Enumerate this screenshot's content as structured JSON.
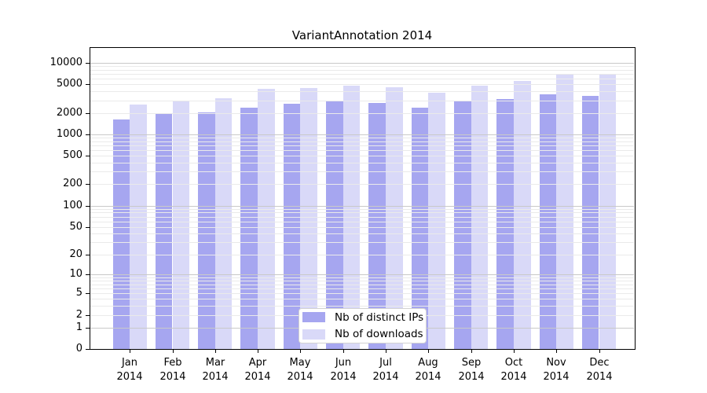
{
  "title": "VariantAnnotation 2014",
  "chart_data": {
    "type": "bar",
    "title": "VariantAnnotation 2014",
    "months": [
      "Jan",
      "Feb",
      "Mar",
      "Apr",
      "May",
      "Jun",
      "Jul",
      "Aug",
      "Sep",
      "Oct",
      "Nov",
      "Dec"
    ],
    "year": "2014",
    "categories": [
      "Jan 2014",
      "Feb 2014",
      "Mar 2014",
      "Apr 2014",
      "May 2014",
      "Jun 2014",
      "Jul 2014",
      "Aug 2014",
      "Sep 2014",
      "Oct 2014",
      "Nov 2014",
      "Dec 2014"
    ],
    "series": [
      {
        "name": "Nb of distinct IPs",
        "color": "#a6a6f0",
        "values": [
          1620,
          1910,
          2050,
          2390,
          2680,
          2870,
          2780,
          2370,
          2920,
          3120,
          3600,
          3460
        ]
      },
      {
        "name": "Nb of downloads",
        "color": "#d9d9f8",
        "values": [
          2600,
          2950,
          3200,
          4300,
          4500,
          4850,
          4600,
          3830,
          4760,
          5590,
          6960,
          6960
        ]
      }
    ],
    "yscale": "log10(value+1)",
    "ylim": [
      0,
      10000
    ],
    "y_tick_labels": [
      "0",
      "1",
      "2",
      "5",
      "10",
      "20",
      "50",
      "100",
      "200",
      "500",
      "1000",
      "2000",
      "5000",
      "10000"
    ],
    "y_tick_values": [
      0,
      1,
      2,
      5,
      10,
      20,
      50,
      100,
      200,
      500,
      1000,
      2000,
      5000,
      10000
    ],
    "grid": true,
    "grid_minor_color": "#eaeaea",
    "grid_major_color": "#c9c9c9",
    "axis_color": "#000000",
    "legend_position": "inside-bottom-center",
    "legend_items": [
      "Nb of distinct IPs",
      "Nb of downloads"
    ]
  }
}
